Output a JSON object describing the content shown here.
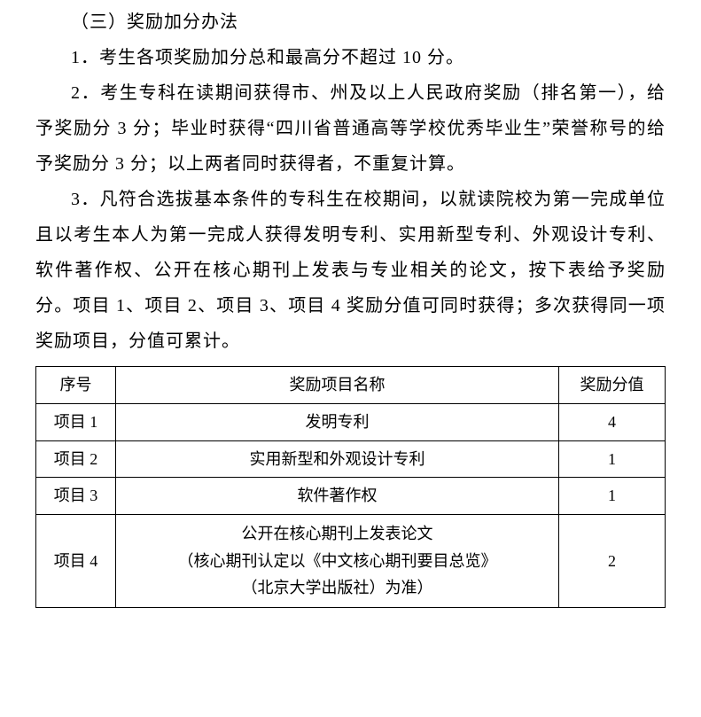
{
  "heading": "（三）奖励加分办法",
  "paragraphs": {
    "p1": "1．考生各项奖励加分总和最高分不超过 10 分。",
    "p2": "2．考生专科在读期间获得市、州及以上人民政府奖励（排名第一），给予奖励分 3 分；毕业时获得“四川省普通高等学校优秀毕业生”荣誉称号的给予奖励分 3 分；以上两者同时获得者，不重复计算。",
    "p3": "3．凡符合选拔基本条件的专科生在校期间，以就读院校为第一完成单位且以考生本人为第一完成人获得发明专利、实用新型专利、外观设计专利、软件著作权、公开在核心期刊上发表与专业相关的论文，按下表给予奖励分。项目 1、项目 2、项目 3、项目 4 奖励分值可同时获得；多次获得同一项奖励项目，分值可累计。"
  },
  "table": {
    "columns": {
      "seq": "序号",
      "name": "奖励项目名称",
      "score": "奖励分值"
    },
    "rows": [
      {
        "seq": "项目 1",
        "name": "发明专利",
        "score": "4"
      },
      {
        "seq": "项目 2",
        "name": "实用新型和外观设计专利",
        "score": "1"
      },
      {
        "seq": "项目 3",
        "name": "软件著作权",
        "score": "1"
      },
      {
        "seq": "项目 4",
        "name_l1": "公开在核心期刊上发表论文",
        "name_l2": "（核心期刊认定以《中文核心期刊要目总览》",
        "name_l3": "（北京大学出版社）为准）",
        "score": "2"
      }
    ],
    "border_color": "#000000",
    "font_size": 18,
    "header_bg": "#ffffff"
  },
  "body_text": {
    "font_size": 20,
    "color": "#000000",
    "line_height": 2.0
  }
}
